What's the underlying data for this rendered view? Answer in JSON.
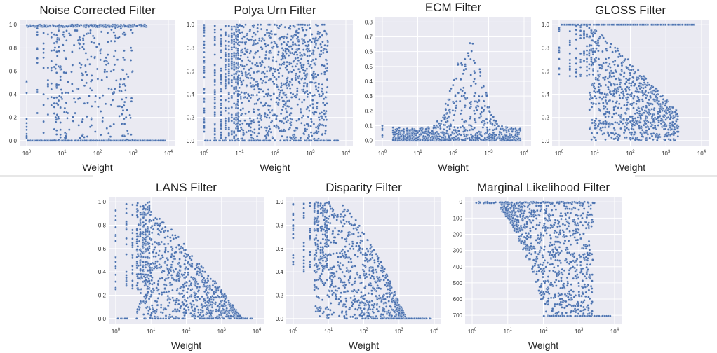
{
  "chart_data": [
    {
      "type": "scatter",
      "title": "Noise Corrected Filter",
      "xlabel": "Weight",
      "ylabel": "",
      "xscale": "log",
      "xlim": [
        1,
        10000
      ],
      "xticks": [
        1,
        10,
        100,
        1000,
        10000
      ],
      "ylim": [
        0,
        1.0
      ],
      "yticks": [
        "0.0",
        "0.2",
        "0.4",
        "0.6",
        "0.8",
        "1.0"
      ],
      "yinverted": false,
      "grid": true,
      "series": [
        {
          "pattern": "noise_corrected",
          "color": "#4c72b0"
        }
      ]
    },
    {
      "type": "scatter",
      "title": "Polya Urn Filter",
      "xlabel": "Weight",
      "ylabel": "",
      "xscale": "log",
      "xlim": [
        1,
        10000
      ],
      "xticks": [
        1,
        10,
        100,
        1000,
        10000
      ],
      "ylim": [
        0,
        1.0
      ],
      "yticks": [
        "0.0",
        "0.2",
        "0.4",
        "0.6",
        "0.8",
        "1.0"
      ],
      "yinverted": false,
      "grid": true,
      "series": [
        {
          "pattern": "polya_urn",
          "color": "#4c72b0"
        }
      ]
    },
    {
      "type": "scatter",
      "title": "ECM Filter",
      "xlabel": "Weight",
      "ylabel": "",
      "xscale": "log",
      "xlim": [
        1,
        10000
      ],
      "xticks": [
        1,
        10,
        100,
        1000,
        10000
      ],
      "ylim": [
        0,
        0.8
      ],
      "yticks": [
        "0.0",
        "0.1",
        "0.2",
        "0.3",
        "0.4",
        "0.5",
        "0.6",
        "0.7",
        "0.8"
      ],
      "yinverted": false,
      "grid": true,
      "series": [
        {
          "pattern": "ecm",
          "color": "#4c72b0"
        }
      ]
    },
    {
      "type": "scatter",
      "title": "GLOSS Filter",
      "xlabel": "Weight",
      "ylabel": "",
      "xscale": "log",
      "xlim": [
        1,
        10000
      ],
      "xticks": [
        1,
        10,
        100,
        1000,
        10000
      ],
      "ylim": [
        0,
        1.0
      ],
      "yticks": [
        "0.0",
        "0.2",
        "0.4",
        "0.6",
        "0.8",
        "1.0"
      ],
      "yinverted": false,
      "grid": true,
      "series": [
        {
          "pattern": "gloss",
          "color": "#4c72b0"
        }
      ]
    },
    {
      "type": "scatter",
      "title": "LANS Filter",
      "xlabel": "Weight",
      "ylabel": "",
      "xscale": "log",
      "xlim": [
        1,
        10000
      ],
      "xticks": [
        1,
        10,
        100,
        1000,
        10000
      ],
      "ylim": [
        0,
        1.0
      ],
      "yticks": [
        "0.0",
        "0.2",
        "0.4",
        "0.6",
        "0.8",
        "1.0"
      ],
      "yinverted": false,
      "grid": true,
      "series": [
        {
          "pattern": "lans",
          "color": "#4c72b0"
        }
      ]
    },
    {
      "type": "scatter",
      "title": "Disparity Filter",
      "xlabel": "Weight",
      "ylabel": "",
      "xscale": "log",
      "xlim": [
        1,
        10000
      ],
      "xticks": [
        1,
        10,
        100,
        1000,
        10000
      ],
      "ylim": [
        0,
        1.0
      ],
      "yticks": [
        "0.0",
        "0.2",
        "0.4",
        "0.6",
        "0.8",
        "1.0"
      ],
      "yinverted": false,
      "grid": true,
      "series": [
        {
          "pattern": "disparity",
          "color": "#4c72b0"
        }
      ]
    },
    {
      "type": "scatter",
      "title": "Marginal Likelihood Filter",
      "xlabel": "Weight",
      "ylabel": "",
      "xscale": "log",
      "xlim": [
        1,
        10000
      ],
      "xticks": [
        1,
        10,
        100,
        1000,
        10000
      ],
      "ylim": [
        0,
        720
      ],
      "yticks": [
        "0",
        "100",
        "200",
        "300",
        "400",
        "500",
        "600",
        "700"
      ],
      "yinverted": true,
      "grid": true,
      "series": [
        {
          "pattern": "marginal_likelihood",
          "color": "#4c72b0"
        }
      ]
    }
  ]
}
